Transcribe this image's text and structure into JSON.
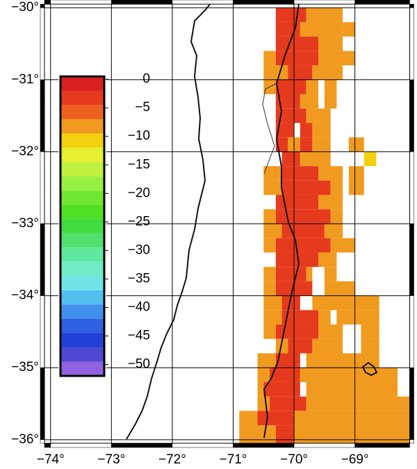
{
  "chart_data": {
    "type": "grid-map",
    "xlim": [
      -74.1,
      -68.1
    ],
    "ylim": [
      -29.95,
      -36.05
    ],
    "xticks": [
      {
        "value": -74,
        "label": "−74°"
      },
      {
        "value": -73,
        "label": "−73°"
      },
      {
        "value": -72,
        "label": "−72°"
      },
      {
        "value": -71,
        "label": "−71°"
      },
      {
        "value": -70,
        "label": "−70°"
      },
      {
        "value": -69,
        "label": "−69°"
      }
    ],
    "yticks": [
      {
        "value": -30,
        "label": "−30°"
      },
      {
        "value": -31,
        "label": "−31°"
      },
      {
        "value": -32,
        "label": "−32°"
      },
      {
        "value": -33,
        "label": "−33°"
      },
      {
        "value": -34,
        "label": "−34°"
      },
      {
        "value": -35,
        "label": "−35°"
      },
      {
        "value": -36,
        "label": "−36°"
      }
    ],
    "grid": true,
    "colorbar": {
      "lim": [
        0.5,
        -52
      ],
      "ticks": [
        0,
        {
          "value": -5,
          "label": "−5"
        },
        {
          "value": -10,
          "label": "−10"
        },
        {
          "value": -15,
          "label": "−15"
        },
        {
          "value": -20,
          "label": "−20"
        },
        {
          "value": -25,
          "label": "−25"
        },
        {
          "value": -30,
          "label": "−30"
        },
        {
          "value": -35,
          "label": "−35"
        },
        {
          "value": -40,
          "label": "−40"
        },
        {
          "value": -45,
          "label": "−45"
        },
        {
          "value": -50,
          "label": "−50"
        }
      ],
      "colors": [
        "#d82020",
        "#e63a1e",
        "#ee6020",
        "#f19a20",
        "#f4d010",
        "#e4f030",
        "#c0f040",
        "#98f040",
        "#70e830",
        "#50e020",
        "#40dc40",
        "#50e070",
        "#60e8a0",
        "#70ecc8",
        "#70e4e8",
        "#50c0f0",
        "#4090f0",
        "#3060e0",
        "#2040d8",
        "#5048d0",
        "#9060e0"
      ]
    },
    "rows": [
      {
        "lat": [
          -30,
          -30.2
        ],
        "runs": [
          [
            -70.3,
            -69.8,
            -2
          ],
          [
            -69.8,
            -69.2,
            -7
          ]
        ]
      },
      {
        "lat": [
          -30.2,
          -30.4
        ],
        "runs": [
          [
            -70.3,
            -69.9,
            -2
          ],
          [
            -69.9,
            -69.2,
            -7
          ],
          [
            -69.2,
            -69.0,
            -7
          ]
        ]
      },
      {
        "lat": [
          -30.4,
          -30.6
        ],
        "runs": [
          [
            -70.3,
            -69.6,
            -2
          ],
          [
            -69.6,
            -69.2,
            -7
          ]
        ]
      },
      {
        "lat": [
          -30.6,
          -30.8
        ],
        "runs": [
          [
            -70.5,
            -70.3,
            -7
          ],
          [
            -70.3,
            -69.6,
            -2
          ],
          [
            -69.6,
            -69.0,
            -7
          ]
        ]
      },
      {
        "lat": [
          -30.8,
          -31.0
        ],
        "runs": [
          [
            -70.5,
            -70.1,
            -7
          ],
          [
            -70.1,
            -69.7,
            -2
          ],
          [
            -69.7,
            -69.2,
            -7
          ]
        ]
      },
      {
        "lat": [
          -31.0,
          -31.2
        ],
        "runs": [
          [
            -70.5,
            -70.3,
            -7
          ],
          [
            -70.3,
            -69.8,
            -2
          ],
          [
            -69.8,
            -69.6,
            -7
          ],
          [
            -69.5,
            -69.3,
            -7
          ]
        ]
      },
      {
        "lat": [
          -31.2,
          -31.4
        ],
        "runs": [
          [
            -70.3,
            -69.9,
            -2
          ],
          [
            -69.9,
            -69.6,
            -7
          ],
          [
            -69.5,
            -69.3,
            -7
          ]
        ]
      },
      {
        "lat": [
          -31.4,
          -31.6
        ],
        "runs": [
          [
            -70.3,
            -69.8,
            -2
          ],
          [
            -69.8,
            -69.4,
            -7
          ]
        ]
      },
      {
        "lat": [
          -31.6,
          -31.8
        ],
        "runs": [
          [
            -70.3,
            -70.0,
            -2
          ],
          [
            -69.9,
            -69.7,
            -2
          ],
          [
            -69.7,
            -69.4,
            -7
          ]
        ]
      },
      {
        "lat": [
          -31.8,
          -32.0
        ],
        "runs": [
          [
            -70.3,
            -70.1,
            -2
          ],
          [
            -70.1,
            -69.9,
            -7
          ],
          [
            -69.9,
            -69.7,
            -2
          ],
          [
            -69.7,
            -69.4,
            -7
          ],
          [
            -69.1,
            -68.85,
            -7
          ]
        ]
      },
      {
        "lat": [
          -32.0,
          -32.2
        ],
        "runs": [
          [
            -70.2,
            -69.9,
            -2
          ],
          [
            -69.9,
            -69.4,
            -7
          ],
          [
            -68.85,
            -68.65,
            -10
          ]
        ]
      },
      {
        "lat": [
          -32.2,
          -32.4
        ],
        "runs": [
          [
            -70.5,
            -70.2,
            -7
          ],
          [
            -70.2,
            -69.6,
            -2
          ],
          [
            -69.6,
            -69.2,
            -7
          ],
          [
            -69.1,
            -68.85,
            -7
          ]
        ]
      },
      {
        "lat": [
          -32.4,
          -32.6
        ],
        "runs": [
          [
            -70.5,
            -70.2,
            -7
          ],
          [
            -70.2,
            -69.4,
            -2
          ],
          [
            -69.4,
            -69.2,
            -7
          ],
          [
            -69.1,
            -68.85,
            -7
          ]
        ]
      },
      {
        "lat": [
          -32.6,
          -32.8
        ],
        "runs": [
          [
            -70.3,
            -69.6,
            -2
          ],
          [
            -69.6,
            -69.2,
            -7
          ]
        ]
      },
      {
        "lat": [
          -32.8,
          -33.0
        ],
        "runs": [
          [
            -70.5,
            -70.3,
            -7
          ],
          [
            -70.3,
            -69.4,
            -2
          ],
          [
            -69.4,
            -69.2,
            -7
          ]
        ]
      },
      {
        "lat": [
          -33.0,
          -33.2
        ],
        "runs": [
          [
            -70.5,
            -70.2,
            -7
          ],
          [
            -70.2,
            -69.5,
            -2
          ],
          [
            -69.5,
            -69.2,
            -7
          ]
        ]
      },
      {
        "lat": [
          -33.2,
          -33.4
        ],
        "runs": [
          [
            -70.5,
            -70.3,
            -7
          ],
          [
            -70.3,
            -69.4,
            -2
          ],
          [
            -69.4,
            -69.0,
            -7
          ]
        ]
      },
      {
        "lat": [
          -33.4,
          -33.6
        ],
        "runs": [
          [
            -70.3,
            -69.6,
            -2
          ],
          [
            -69.6,
            -69.3,
            -7
          ]
        ]
      },
      {
        "lat": [
          -33.6,
          -33.8
        ],
        "runs": [
          [
            -70.5,
            -70.3,
            -7
          ],
          [
            -70.3,
            -69.8,
            -2
          ],
          [
            -69.8,
            -69.7,
            -7
          ],
          [
            -69.5,
            -69.3,
            -7
          ]
        ]
      },
      {
        "lat": [
          -33.8,
          -34.0
        ],
        "runs": [
          [
            -70.5,
            -70.3,
            -7
          ],
          [
            -70.3,
            -69.7,
            -2
          ],
          [
            -69.5,
            -69.0,
            -7
          ]
        ]
      },
      {
        "lat": [
          -34.0,
          -34.2
        ],
        "runs": [
          [
            -70.5,
            -70.2,
            -7
          ],
          [
            -70.2,
            -69.9,
            -2
          ],
          [
            -69.7,
            -68.6,
            -7
          ]
        ]
      },
      {
        "lat": [
          -34.2,
          -34.4
        ],
        "runs": [
          [
            -70.5,
            -70.2,
            -7
          ],
          [
            -70.2,
            -69.6,
            -2
          ],
          [
            -69.6,
            -69.4,
            -7
          ],
          [
            -69.3,
            -68.6,
            -7
          ]
        ]
      },
      {
        "lat": [
          -34.4,
          -34.6
        ],
        "runs": [
          [
            -70.5,
            -70.3,
            -7
          ],
          [
            -70.3,
            -69.6,
            -2
          ],
          [
            -69.6,
            -69.2,
            -7
          ],
          [
            -68.9,
            -68.6,
            -7
          ]
        ]
      },
      {
        "lat": [
          -34.6,
          -34.8
        ],
        "runs": [
          [
            -70.3,
            -70.1,
            -7
          ],
          [
            -70.1,
            -69.7,
            -2
          ],
          [
            -69.7,
            -69.2,
            -7
          ],
          [
            -68.9,
            -68.6,
            -7
          ]
        ]
      },
      {
        "lat": [
          -34.8,
          -35.0
        ],
        "runs": [
          [
            -70.6,
            -70.3,
            -7
          ],
          [
            -70.3,
            -69.9,
            -2
          ],
          [
            -69.8,
            -68.6,
            -7
          ]
        ]
      },
      {
        "lat": [
          -35.0,
          -35.2
        ],
        "runs": [
          [
            -70.6,
            -70.4,
            -7
          ],
          [
            -70.4,
            -69.9,
            -2
          ],
          [
            -69.9,
            -68.3,
            -7
          ]
        ]
      },
      {
        "lat": [
          -35.2,
          -35.4
        ],
        "runs": [
          [
            -70.6,
            -70.5,
            -7
          ],
          [
            -70.5,
            -69.9,
            -2
          ],
          [
            -69.8,
            -68.3,
            -7
          ]
        ]
      },
      {
        "lat": [
          -35.4,
          -35.6
        ],
        "runs": [
          [
            -70.6,
            -70.4,
            -7
          ],
          [
            -70.4,
            -69.8,
            -2
          ],
          [
            -69.8,
            -68.1,
            -7
          ]
        ]
      },
      {
        "lat": [
          -35.6,
          -35.8
        ],
        "runs": [
          [
            -70.9,
            -70.6,
            -7
          ],
          [
            -70.6,
            -70.0,
            -2
          ],
          [
            -70.0,
            -68.1,
            -7
          ]
        ]
      },
      {
        "lat": [
          -35.8,
          -36.05
        ],
        "runs": [
          [
            -70.9,
            -70.3,
            -7
          ],
          [
            -70.3,
            -70.0,
            -2
          ],
          [
            -70.0,
            -68.1,
            -7
          ]
        ]
      }
    ]
  }
}
